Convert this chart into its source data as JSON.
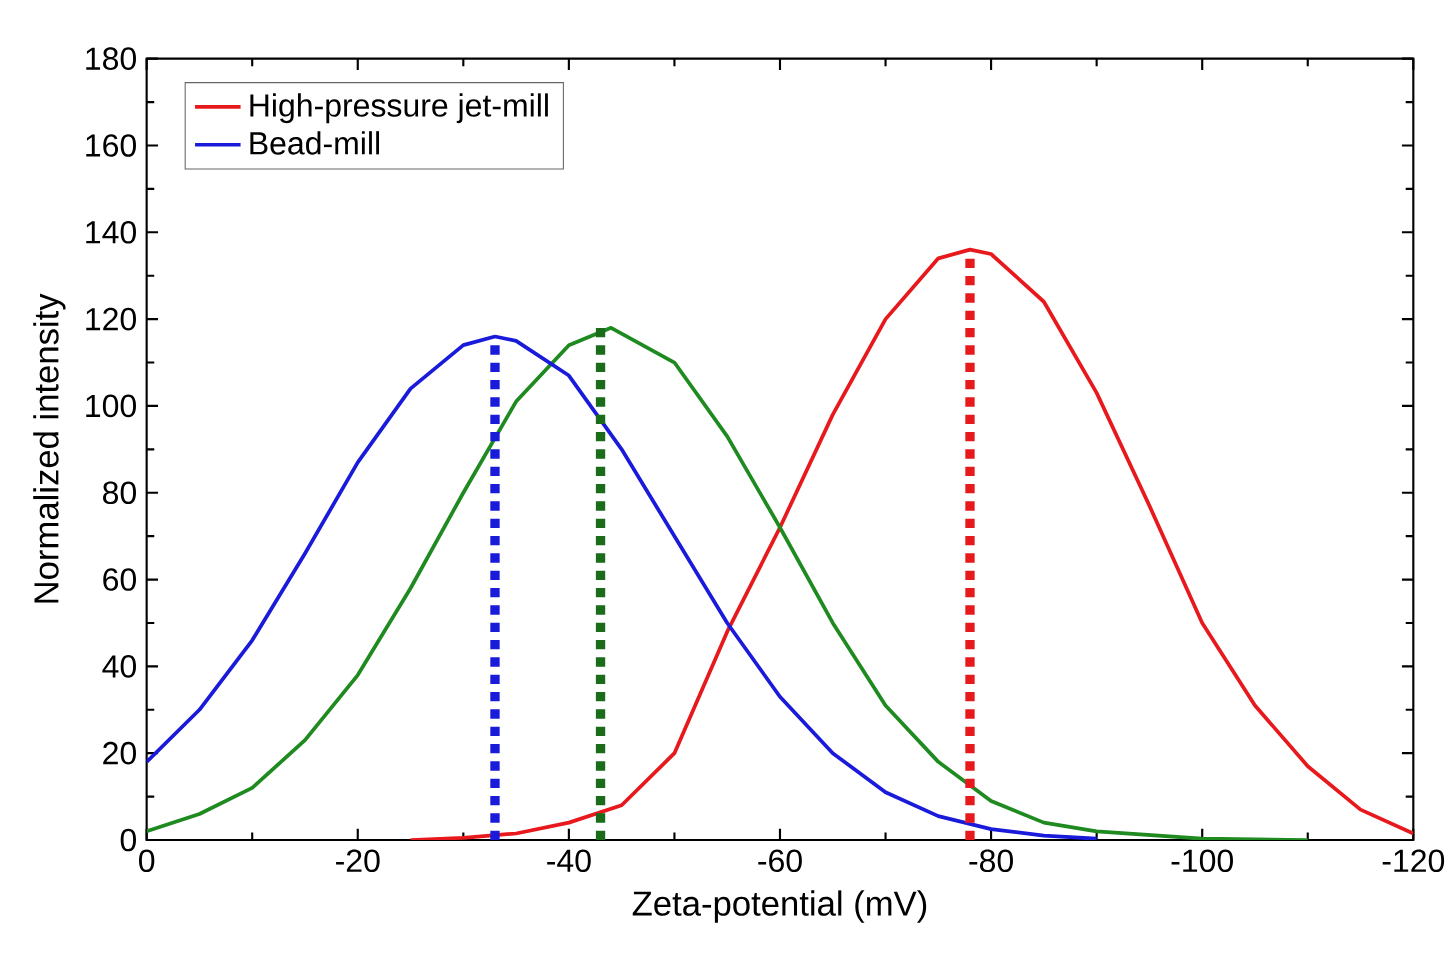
{
  "chart_data": {
    "type": "line",
    "xlabel": "Zeta-potential (mV)",
    "ylabel": "Normalized intensity",
    "xlim": [
      0,
      -120
    ],
    "ylim": [
      0,
      180
    ],
    "xticks": [
      0,
      -20,
      -40,
      -60,
      -80,
      -100,
      -120
    ],
    "yticks": [
      0,
      20,
      40,
      60,
      80,
      100,
      120,
      140,
      160,
      180
    ],
    "grid": false,
    "legend": "top left",
    "marker": "none",
    "line_style": "solid",
    "series": [
      {
        "name": "High-pressure jet-mill",
        "color": "#e8191d",
        "x": [
          -25,
          -30,
          -35,
          -40,
          -45,
          -50,
          -55,
          -60,
          -65,
          -70,
          -75,
          -78,
          -80,
          -85,
          -90,
          -95,
          -100,
          -105,
          -110,
          -115,
          -120
        ],
        "values": [
          0,
          0.5,
          1.5,
          4,
          8,
          20,
          48,
          72,
          98,
          120,
          134,
          136,
          135,
          124,
          103,
          77,
          50,
          31,
          17,
          7,
          1.5
        ]
      },
      {
        "color": "#1f8a1f",
        "x": [
          0,
          -5,
          -10,
          -15,
          -20,
          -25,
          -30,
          -35,
          -40,
          -44,
          -50,
          -55,
          -60,
          -65,
          -70,
          -75,
          -80,
          -85,
          -90,
          -100,
          -110
        ],
        "values": [
          2,
          6,
          12,
          23,
          38,
          58,
          80,
          101,
          114,
          118,
          110,
          93,
          72,
          50,
          31,
          18,
          9,
          4,
          2,
          0.3,
          0
        ]
      },
      {
        "name": "Bead-mill",
        "color": "#1a1adb",
        "x": [
          0,
          -5,
          -10,
          -15,
          -20,
          -25,
          -30,
          -33,
          -35,
          -40,
          -45,
          -50,
          -55,
          -60,
          -65,
          -70,
          -75,
          -80,
          -85,
          -90
        ],
        "values": [
          18,
          30,
          46,
          66,
          87,
          104,
          114,
          116,
          115,
          107,
          90,
          70,
          50,
          33,
          20,
          11,
          5.5,
          2.5,
          1,
          0.3
        ]
      },
      {
        "type": "line",
        "line_style": "dotted",
        "color": "#e8191d",
        "x": [
          -78,
          -78
        ],
        "values": [
          0,
          136
        ]
      },
      {
        "type": "line",
        "line_style": "dotted",
        "color": "#1a6b1a",
        "x": [
          -43,
          -43
        ],
        "values": [
          0,
          118
        ]
      },
      {
        "type": "line",
        "line_style": "dotted",
        "color": "#1a1adb",
        "x": [
          -33,
          -33
        ],
        "values": [
          0,
          116
        ]
      }
    ]
  }
}
